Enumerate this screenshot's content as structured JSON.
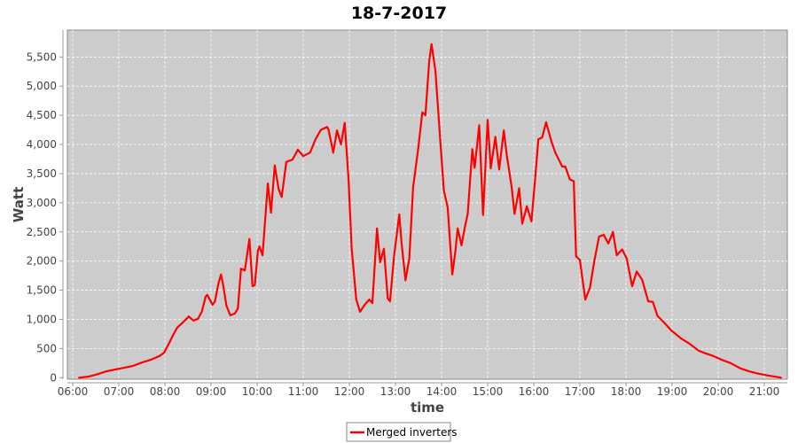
{
  "chart_data": {
    "type": "line",
    "title": "18-7-2017",
    "xlabel": "time",
    "ylabel": "Watt",
    "ylim": [
      0,
      5800
    ],
    "xlim": [
      "05:52",
      "21:38"
    ],
    "grid": true,
    "legend_placement": "bottom",
    "plot_background": "#cccccc",
    "x_ticks": [
      "06:00",
      "07:00",
      "08:00",
      "09:00",
      "10:00",
      "11:00",
      "12:00",
      "13:00",
      "14:00",
      "15:00",
      "16:00",
      "17:00",
      "18:00",
      "19:00",
      "20:00",
      "21:00"
    ],
    "y_ticks": [
      "0",
      "500",
      "1,000",
      "1,500",
      "2,000",
      "2,500",
      "3,000",
      "3,500",
      "4,000",
      "4,500",
      "5,000",
      "5,500"
    ],
    "series": [
      {
        "name": "Merged inverters",
        "color": "#ff0000",
        "x": [
          "06:08",
          "06:21",
          "06:32",
          "06:44",
          "06:55",
          "07:07",
          "07:18",
          "07:30",
          "07:42",
          "07:53",
          "07:59",
          "08:05",
          "08:11",
          "08:16",
          "08:22",
          "08:28",
          "08:31",
          "08:37",
          "08:43",
          "08:48",
          "08:53",
          "08:55",
          "09:02",
          "09:05",
          "09:10",
          "09:13",
          "09:16",
          "09:20",
          "09:25",
          "09:31",
          "09:35",
          "09:39",
          "09:44",
          "09:50",
          "09:54",
          "09:57",
          "10:01",
          "10:03",
          "10:07",
          "10:14",
          "10:18",
          "10:23",
          "10:28",
          "10:32",
          "10:38",
          "10:46",
          "10:53",
          "11:00",
          "11:09",
          "11:16",
          "11:23",
          "11:31",
          "11:33",
          "11:39",
          "11:44",
          "11:49",
          "11:54",
          "11:59",
          "12:03",
          "12:09",
          "12:14",
          "12:20",
          "12:26",
          "12:30",
          "12:36",
          "12:40",
          "12:45",
          "12:50",
          "12:53",
          "12:58",
          "13:05",
          "13:08",
          "13:13",
          "13:18",
          "13:23",
          "13:30",
          "13:35",
          "13:39",
          "13:44",
          "13:47",
          "13:52",
          "13:58",
          "14:03",
          "14:08",
          "14:14",
          "14:18",
          "14:21",
          "14:26",
          "14:30",
          "14:34",
          "14:40",
          "14:43",
          "14:49",
          "14:54",
          "15:00",
          "15:04",
          "15:10",
          "15:15",
          "15:21",
          "15:25",
          "15:31",
          "15:35",
          "15:41",
          "15:45",
          "15:51",
          "15:57",
          "16:02",
          "16:06",
          "16:11",
          "16:16",
          "16:23",
          "16:28",
          "16:37",
          "16:41",
          "16:47",
          "16:52",
          "16:55",
          "17:00",
          "17:07",
          "17:13",
          "17:19",
          "17:25",
          "17:31",
          "17:37",
          "17:43",
          "17:48",
          "17:55",
          "18:01",
          "18:08",
          "18:14",
          "18:21",
          "18:29",
          "18:35",
          "18:41",
          "18:50",
          "18:59",
          "19:12",
          "19:23",
          "19:35",
          "19:43",
          "19:52",
          "20:04",
          "20:16",
          "20:29",
          "20:40",
          "20:52",
          "21:04",
          "21:22"
        ],
        "values": [
          0,
          20,
          60,
          110,
          140,
          170,
          200,
          260,
          310,
          370,
          430,
          580,
          740,
          860,
          930,
          1010,
          1050,
          980,
          1010,
          1130,
          1390,
          1420,
          1250,
          1300,
          1640,
          1770,
          1570,
          1240,
          1070,
          1100,
          1190,
          1870,
          1840,
          2380,
          1570,
          1590,
          2180,
          2250,
          2100,
          3330,
          2830,
          3640,
          3230,
          3100,
          3700,
          3740,
          3910,
          3800,
          3860,
          4090,
          4250,
          4300,
          4250,
          3860,
          4240,
          4000,
          4370,
          3400,
          2220,
          1340,
          1130,
          1250,
          1340,
          1280,
          2560,
          1980,
          2210,
          1360,
          1310,
          2070,
          2800,
          2310,
          1670,
          2040,
          3260,
          3970,
          4550,
          4500,
          5430,
          5720,
          5260,
          4120,
          3210,
          2920,
          1770,
          2170,
          2560,
          2270,
          2560,
          2810,
          3920,
          3600,
          4330,
          2790,
          4420,
          3590,
          4130,
          3570,
          4240,
          3800,
          3290,
          2810,
          3250,
          2640,
          2940,
          2680,
          3440,
          4090,
          4120,
          4380,
          4050,
          3860,
          3620,
          3620,
          3400,
          3370,
          2080,
          2020,
          1340,
          1540,
          2020,
          2420,
          2450,
          2300,
          2500,
          2100,
          2200,
          2040,
          1570,
          1820,
          1680,
          1310,
          1300,
          1060,
          940,
          810,
          670,
          580,
          460,
          420,
          380,
          310,
          250,
          160,
          110,
          70,
          40,
          0
        ]
      }
    ]
  }
}
